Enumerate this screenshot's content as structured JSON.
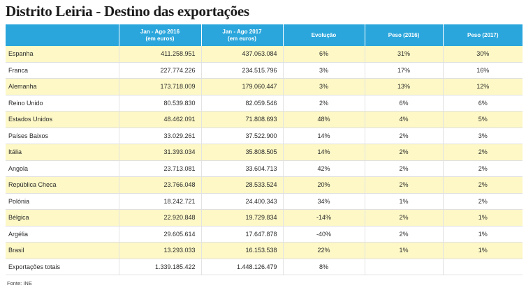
{
  "title": "Distrito Leiria - Destino das exportações",
  "table": {
    "headers": [
      {
        "line1": "",
        "line2": ""
      },
      {
        "line1": "Jan - Ago 2016",
        "line2": "(em euros)"
      },
      {
        "line1": "Jan - Ago 2017",
        "line2": "(em euros)"
      },
      {
        "line1": "Evolução",
        "line2": ""
      },
      {
        "line1": "Peso (2016)",
        "line2": ""
      },
      {
        "line1": "Peso (2017)",
        "line2": ""
      }
    ],
    "rows": [
      {
        "country": "Espanha",
        "v2016": "411.258.951",
        "v2017": "437.063.084",
        "evolucao": "6%",
        "peso2016": "31%",
        "peso2017": "30%"
      },
      {
        "country": "Franca",
        "v2016": "227.774.226",
        "v2017": "234.515.796",
        "evolucao": "3%",
        "peso2016": "17%",
        "peso2017": "16%"
      },
      {
        "country": "Alemanha",
        "v2016": "173.718.009",
        "v2017": "179.060.447",
        "evolucao": "3%",
        "peso2016": "13%",
        "peso2017": "12%"
      },
      {
        "country": "Reino Unido",
        "v2016": "80.539.830",
        "v2017": "82.059.546",
        "evolucao": "2%",
        "peso2016": "6%",
        "peso2017": "6%"
      },
      {
        "country": "Estados Unidos",
        "v2016": "48.462.091",
        "v2017": "71.808.693",
        "evolucao": "48%",
        "peso2016": "4%",
        "peso2017": "5%"
      },
      {
        "country": "Países Baixos",
        "v2016": "33.029.261",
        "v2017": "37.522.900",
        "evolucao": "14%",
        "peso2016": "2%",
        "peso2017": "3%"
      },
      {
        "country": "Itália",
        "v2016": "31.393.034",
        "v2017": "35.808.505",
        "evolucao": "14%",
        "peso2016": "2%",
        "peso2017": "2%"
      },
      {
        "country": "Angola",
        "v2016": "23.713.081",
        "v2017": "33.604.713",
        "evolucao": "42%",
        "peso2016": "2%",
        "peso2017": "2%"
      },
      {
        "country": "República Checa",
        "v2016": "23.766.048",
        "v2017": "28.533.524",
        "evolucao": "20%",
        "peso2016": "2%",
        "peso2017": "2%"
      },
      {
        "country": "Polónia",
        "v2016": "18.242.721",
        "v2017": "24.400.343",
        "evolucao": "34%",
        "peso2016": "1%",
        "peso2017": "2%"
      },
      {
        "country": "Bélgica",
        "v2016": "22.920.848",
        "v2017": "19.729.834",
        "evolucao": "-14%",
        "peso2016": "2%",
        "peso2017": "1%"
      },
      {
        "country": "Argélia",
        "v2016": "29.605.614",
        "v2017": "17.647.878",
        "evolucao": "-40%",
        "peso2016": "2%",
        "peso2017": "1%"
      },
      {
        "country": "Brasil",
        "v2016": "13.293.033",
        "v2017": "16.153.538",
        "evolucao": "22%",
        "peso2016": "1%",
        "peso2017": "1%"
      },
      {
        "country": "Exportações totais",
        "v2016": "1.339.185.422",
        "v2017": "1.448.126.479",
        "evolucao": "8%",
        "peso2016": "",
        "peso2017": ""
      }
    ]
  },
  "source": "Fonte: INE",
  "colors": {
    "header_bg": "#2aa6dc",
    "alt_row_bg": "#fdf8c6"
  }
}
